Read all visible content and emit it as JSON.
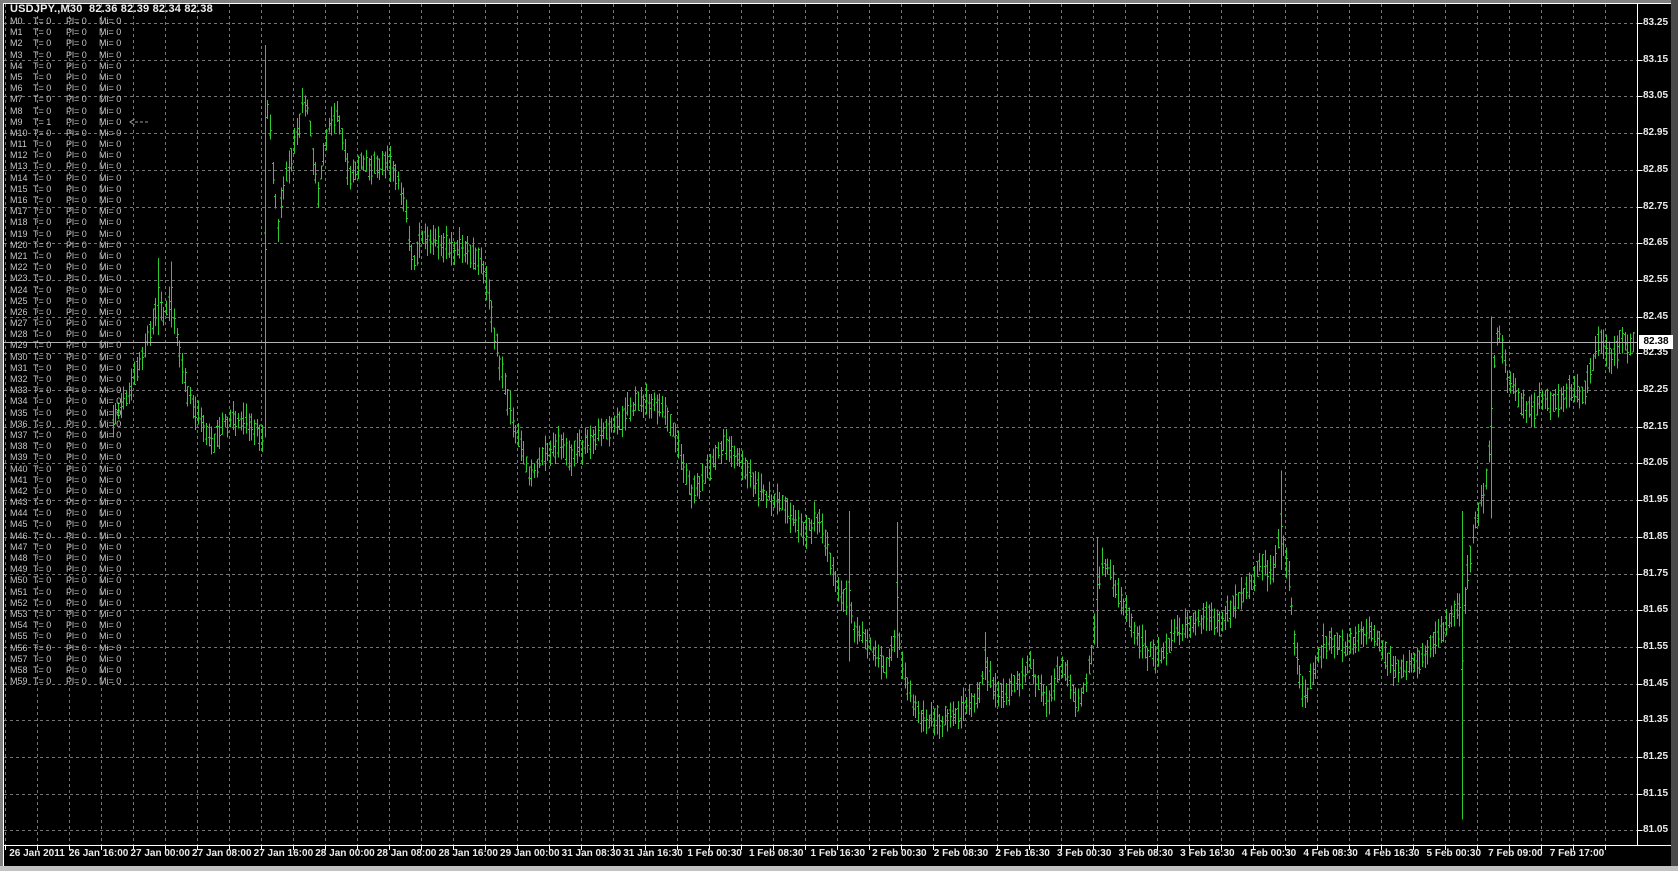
{
  "header": {
    "title": "USDJPY.,M30  82.36 82.39 82.34 82.38"
  },
  "indicator": {
    "arrow_row_index": 9,
    "rows": [
      [
        "M0",
        "T= 0",
        "Pl= 0",
        "Mi= 0"
      ],
      [
        "M1",
        "T= 0",
        "Pl= 0",
        "Mi= 0"
      ],
      [
        "M2",
        "T= 0",
        "Pl= 0",
        "Mi= 0"
      ],
      [
        "M3",
        "T= 0",
        "Pl= 0",
        "Mi= 0"
      ],
      [
        "M4",
        "T= 0",
        "Pl= 0",
        "Mi= 0"
      ],
      [
        "M5",
        "T= 0",
        "Pl= 0",
        "Mi= 0"
      ],
      [
        "M6",
        "T= 0",
        "Pl= 0",
        "Mi= 0"
      ],
      [
        "M7",
        "T= 0",
        "Pl= 0",
        "Mi= 0"
      ],
      [
        "M8",
        "T= 0",
        "Pl= 0",
        "Mi= 0"
      ],
      [
        "M9",
        "T= 1",
        "Pl= 0",
        "Mi= 0"
      ],
      [
        "M10",
        "T= 0",
        "Pl= 0",
        "Mi= 0"
      ],
      [
        "M11",
        "T= 0",
        "Pl= 0",
        "Mi= 0"
      ],
      [
        "M12",
        "T= 0",
        "Pl= 0",
        "Mi= 0"
      ],
      [
        "M13",
        "T= 0",
        "Pl= 0",
        "Mi= 0"
      ],
      [
        "M14",
        "T= 0",
        "Pl= 0",
        "Mi= 0"
      ],
      [
        "M15",
        "T= 0",
        "Pl= 0",
        "Mi= 0"
      ],
      [
        "M16",
        "T= 0",
        "Pl= 0",
        "Mi= 0"
      ],
      [
        "M17",
        "T= 0",
        "Pl= 0",
        "Mi= 0"
      ],
      [
        "M18",
        "T= 0",
        "Pl= 0",
        "Mi= 0"
      ],
      [
        "M19",
        "T= 0",
        "Pl= 0",
        "Mi= 0"
      ],
      [
        "M20",
        "T= 0",
        "Pl= 0",
        "Mi= 0"
      ],
      [
        "M21",
        "T= 0",
        "Pl= 0",
        "Mi= 0"
      ],
      [
        "M22",
        "T= 0",
        "Pl= 0",
        "Mi= 0"
      ],
      [
        "M23",
        "T= 0",
        "Pl= 0",
        "Mi= 0"
      ],
      [
        "M24",
        "T= 0",
        "Pl= 0",
        "Mi= 0"
      ],
      [
        "M25",
        "T= 0",
        "Pl= 0",
        "Mi= 0"
      ],
      [
        "M26",
        "T= 0",
        "Pl= 0",
        "Mi= 0"
      ],
      [
        "M27",
        "T= 0",
        "Pl= 0",
        "Mi= 0"
      ],
      [
        "M28",
        "T= 0",
        "Pl= 0",
        "Mi= 0"
      ],
      [
        "M29",
        "T= 0",
        "Pl= 0",
        "Mi= 0"
      ],
      [
        "M30",
        "T= 0",
        "Pl= 0",
        "Mi= 0"
      ],
      [
        "M31",
        "T= 0",
        "Pl= 0",
        "Mi= 0"
      ],
      [
        "M32",
        "T= 0",
        "Pl= 0",
        "Mi= 0"
      ],
      [
        "M33",
        "T= 0",
        "Pl= 0",
        "Mi= 0"
      ],
      [
        "M34",
        "T= 0",
        "Pl= 0",
        "Mi= 0"
      ],
      [
        "M35",
        "T= 0",
        "Pl= 0",
        "Mi= 0"
      ],
      [
        "M36",
        "T= 0",
        "Pl= 0",
        "Mi= 0"
      ],
      [
        "M37",
        "T= 0",
        "Pl= 0",
        "Mi= 0"
      ],
      [
        "M38",
        "T= 0",
        "Pl= 0",
        "Mi= 0"
      ],
      [
        "M39",
        "T= 0",
        "Pl= 0",
        "Mi= 0"
      ],
      [
        "M40",
        "T= 0",
        "Pl= 0",
        "Mi= 0"
      ],
      [
        "M41",
        "T= 0",
        "Pl= 0",
        "Mi= 0"
      ],
      [
        "M42",
        "T= 0",
        "Pl= 0",
        "Mi= 0"
      ],
      [
        "M43",
        "T= 0",
        "Pl= 0",
        "Mi= 0"
      ],
      [
        "M44",
        "T= 0",
        "Pl= 0",
        "Mi= 0"
      ],
      [
        "M45",
        "T= 0",
        "Pl= 0",
        "Mi= 0"
      ],
      [
        "M46",
        "T= 0",
        "Pl= 0",
        "Mi= 0"
      ],
      [
        "M47",
        "T= 0",
        "Pl= 0",
        "Mi= 0"
      ],
      [
        "M48",
        "T= 0",
        "Pl= 0",
        "Mi= 0"
      ],
      [
        "M49",
        "T= 0",
        "Pl= 0",
        "Mi= 0"
      ],
      [
        "M50",
        "T= 0",
        "Pl= 0",
        "Mi= 0"
      ],
      [
        "M51",
        "T= 0",
        "Pl= 0",
        "Mi= 0"
      ],
      [
        "M52",
        "T= 0",
        "Pl= 0",
        "Mi= 0"
      ],
      [
        "M53",
        "T= 0",
        "Pl= 0",
        "Mi= 0"
      ],
      [
        "M54",
        "T= 0",
        "Pl= 0",
        "Mi= 0"
      ],
      [
        "M55",
        "T= 0",
        "Pl= 0",
        "Mi= 0"
      ],
      [
        "M56",
        "T= 0",
        "Pl= 0",
        "Mi= 0"
      ],
      [
        "M57",
        "T= 0",
        "Pl= 0",
        "Mi= 0"
      ],
      [
        "M58",
        "T= 0",
        "Pl= 0",
        "Mi= 0"
      ],
      [
        "M59",
        "T= 0",
        "Pl= 0",
        "Mi= 0"
      ]
    ]
  },
  "chart_data": {
    "type": "ohlc-bar-chart",
    "symbol": "USDJPY.",
    "timeframe": "M30",
    "current_bar": {
      "open": "82.36",
      "high": "82.39",
      "low": "82.34",
      "close": "82.38"
    },
    "bid": 82.38,
    "bar_color": "#2ECB2E",
    "grid_color": "#757575",
    "bid_line_color": "#b2b2b2",
    "background": "#000000",
    "price_axis": {
      "current": "82.38",
      "top": 83.25,
      "step": 0.1,
      "labels": [
        "83.25",
        "83.15",
        "83.05",
        "82.95",
        "82.85",
        "82.75",
        "82.65",
        "82.55",
        "82.45",
        "82.35",
        "82.25",
        "82.15",
        "82.05",
        "81.95",
        "81.85",
        "81.75",
        "81.65",
        "81.55",
        "81.45",
        "81.35",
        "81.25",
        "81.15",
        "81.05"
      ]
    },
    "time_axis": {
      "labels": [
        "26 Jan 2011",
        "26 Jan 16:00",
        "27 Jan 00:00",
        "27 Jan 08:00",
        "27 Jan 16:00",
        "28 Jan 00:00",
        "28 Jan 08:00",
        "28 Jan 16:00",
        "29 Jan 00:00",
        "31 Jan 08:30",
        "31 Jan 16:30",
        "1 Feb 00:30",
        "1 Feb 08:30",
        "1 Feb 16:30",
        "2 Feb 00:30",
        "2 Feb 08:30",
        "2 Feb 16:30",
        "3 Feb 00:30",
        "3 Feb 08:30",
        "3 Feb 16:30",
        "4 Feb 00:30",
        "4 Feb 08:30",
        "4 Feb 16:30",
        "5 Feb 00:30",
        "7 Feb 09:00",
        "7 Feb 17:00"
      ]
    },
    "path_keypoints": [
      [
        112,
        82.15
      ],
      [
        120,
        82.2
      ],
      [
        128,
        82.24
      ],
      [
        136,
        82.3
      ],
      [
        144,
        82.36
      ],
      [
        152,
        82.43
      ],
      [
        157.8,
        82.5
      ],
      [
        163,
        82.46
      ],
      [
        168,
        82.48
      ],
      [
        171.2,
        82.5
      ],
      [
        176,
        82.4
      ],
      [
        182,
        82.31
      ],
      [
        188,
        82.24
      ],
      [
        194,
        82.2
      ],
      [
        200,
        82.17
      ],
      [
        206,
        82.13
      ],
      [
        212,
        82.1
      ],
      [
        218,
        82.13
      ],
      [
        224,
        82.16
      ],
      [
        231,
        82.17
      ],
      [
        238,
        82.16
      ],
      [
        245,
        82.16
      ],
      [
        252,
        82.15
      ],
      [
        258,
        82.14
      ],
      [
        262,
        82.13
      ],
      [
        264.5,
        82.6
      ],
      [
        267,
        83.02
      ],
      [
        270,
        82.94
      ],
      [
        274,
        82.8
      ],
      [
        277,
        82.68
      ],
      [
        280,
        82.76
      ],
      [
        284,
        82.82
      ],
      [
        288,
        82.86
      ],
      [
        292,
        82.89
      ],
      [
        297,
        82.96
      ],
      [
        302,
        83.03
      ],
      [
        307,
        83.02
      ],
      [
        311,
        82.92
      ],
      [
        315,
        82.84
      ],
      [
        318,
        82.78
      ],
      [
        322,
        82.88
      ],
      [
        327,
        82.95
      ],
      [
        332,
        82.99
      ],
      [
        337,
        83.0
      ],
      [
        342,
        82.94
      ],
      [
        347,
        82.86
      ],
      [
        352,
        82.83
      ],
      [
        358,
        82.86
      ],
      [
        364,
        82.87
      ],
      [
        370,
        82.85
      ],
      [
        376,
        82.86
      ],
      [
        382,
        82.88
      ],
      [
        388,
        82.87
      ],
      [
        394,
        82.85
      ],
      [
        400,
        82.8
      ],
      [
        406,
        82.72
      ],
      [
        410,
        82.63
      ],
      [
        414,
        82.6
      ],
      [
        419,
        82.65
      ],
      [
        425,
        82.67
      ],
      [
        432,
        82.66
      ],
      [
        440,
        82.65
      ],
      [
        448,
        82.64
      ],
      [
        456,
        82.64
      ],
      [
        464,
        82.63
      ],
      [
        472,
        82.61
      ],
      [
        480,
        82.6
      ],
      [
        486,
        82.54
      ],
      [
        491,
        82.45
      ],
      [
        497,
        82.36
      ],
      [
        503,
        82.28
      ],
      [
        509,
        82.2
      ],
      [
        516,
        82.12
      ],
      [
        523,
        82.07
      ],
      [
        530,
        82.01
      ],
      [
        536,
        82.04
      ],
      [
        543,
        82.07
      ],
      [
        550,
        82.08
      ],
      [
        557,
        82.1
      ],
      [
        564,
        82.09
      ],
      [
        570,
        82.07
      ],
      [
        577,
        82.09
      ],
      [
        584,
        82.1
      ],
      [
        591,
        82.12
      ],
      [
        598,
        82.12
      ],
      [
        605,
        82.13
      ],
      [
        612,
        82.15
      ],
      [
        619,
        82.17
      ],
      [
        627,
        82.19
      ],
      [
        635,
        82.21
      ],
      [
        643,
        82.22
      ],
      [
        651,
        82.22
      ],
      [
        658,
        82.21
      ],
      [
        665,
        82.19
      ],
      [
        671,
        82.15
      ],
      [
        678,
        82.09
      ],
      [
        684,
        82.03
      ],
      [
        690,
        81.98
      ],
      [
        696,
        81.99
      ],
      [
        702,
        82.01
      ],
      [
        708,
        82.03
      ],
      [
        714,
        82.06
      ],
      [
        720,
        82.09
      ],
      [
        726,
        82.1
      ],
      [
        732,
        82.08
      ],
      [
        738,
        82.06
      ],
      [
        744,
        82.04
      ],
      [
        750,
        82.02
      ],
      [
        757,
        81.99
      ],
      [
        764,
        81.97
      ],
      [
        771,
        81.95
      ],
      [
        778,
        81.95
      ],
      [
        785,
        81.93
      ],
      [
        792,
        81.9
      ],
      [
        799,
        81.88
      ],
      [
        806,
        81.87
      ],
      [
        813,
        81.89
      ],
      [
        819,
        81.9
      ],
      [
        825,
        81.85
      ],
      [
        831,
        81.78
      ],
      [
        837,
        81.72
      ],
      [
        843,
        81.68
      ],
      [
        848.5,
        81.67
      ],
      [
        854,
        81.61
      ],
      [
        860,
        81.58
      ],
      [
        866,
        81.56
      ],
      [
        872,
        81.54
      ],
      [
        878,
        81.52
      ],
      [
        884,
        81.5
      ],
      [
        890,
        81.53
      ],
      [
        896.5,
        81.62
      ],
      [
        901,
        81.52
      ],
      [
        906,
        81.45
      ],
      [
        911,
        81.41
      ],
      [
        916,
        81.38
      ],
      [
        921,
        81.36
      ],
      [
        927,
        81.35
      ],
      [
        933,
        81.36
      ],
      [
        939,
        81.35
      ],
      [
        945,
        81.36
      ],
      [
        951,
        81.36
      ],
      [
        957,
        81.37
      ],
      [
        963,
        81.39
      ],
      [
        969,
        81.4
      ],
      [
        975,
        81.41
      ],
      [
        980,
        81.44
      ],
      [
        984.5,
        81.5
      ],
      [
        989,
        81.46
      ],
      [
        994,
        81.44
      ],
      [
        1000,
        81.43
      ],
      [
        1006,
        81.42
      ],
      [
        1012,
        81.44
      ],
      [
        1018,
        81.46
      ],
      [
        1024,
        81.48
      ],
      [
        1030,
        81.5
      ],
      [
        1036,
        81.46
      ],
      [
        1042,
        81.42
      ],
      [
        1047,
        81.39
      ],
      [
        1052,
        81.43
      ],
      [
        1057,
        81.48
      ],
      [
        1062,
        81.5
      ],
      [
        1067,
        81.47
      ],
      [
        1072,
        81.43
      ],
      [
        1077,
        81.39
      ],
      [
        1082,
        81.42
      ],
      [
        1087,
        81.46
      ],
      [
        1092,
        81.55
      ],
      [
        1096.5,
        81.68
      ],
      [
        1101,
        81.76
      ],
      [
        1106,
        81.77
      ],
      [
        1111,
        81.74
      ],
      [
        1117,
        81.7
      ],
      [
        1123,
        81.66
      ],
      [
        1129,
        81.62
      ],
      [
        1135,
        81.59
      ],
      [
        1141,
        81.56
      ],
      [
        1147,
        81.54
      ],
      [
        1153,
        81.53
      ],
      [
        1159,
        81.52
      ],
      [
        1165,
        81.54
      ],
      [
        1171,
        81.57
      ],
      [
        1177,
        81.59
      ],
      [
        1183,
        81.6
      ],
      [
        1189,
        81.61
      ],
      [
        1195,
        81.62
      ],
      [
        1201,
        81.63
      ],
      [
        1207,
        81.64
      ],
      [
        1213,
        81.63
      ],
      [
        1219,
        81.6
      ],
      [
        1225,
        81.63
      ],
      [
        1231,
        81.66
      ],
      [
        1237,
        81.68
      ],
      [
        1243,
        81.7
      ],
      [
        1249,
        81.72
      ],
      [
        1255,
        81.75
      ],
      [
        1261,
        81.78
      ],
      [
        1267,
        81.75
      ],
      [
        1272,
        81.76
      ],
      [
        1276,
        81.79
      ],
      [
        1280.5,
        81.88
      ],
      [
        1285,
        81.8
      ],
      [
        1289,
        81.72
      ],
      [
        1293,
        81.6
      ],
      [
        1297,
        81.5
      ],
      [
        1301,
        81.44
      ],
      [
        1306,
        81.42
      ],
      [
        1311,
        81.46
      ],
      [
        1316,
        81.51
      ],
      [
        1321,
        81.55
      ],
      [
        1326,
        81.57
      ],
      [
        1332,
        81.57
      ],
      [
        1338,
        81.56
      ],
      [
        1344,
        81.55
      ],
      [
        1350,
        81.56
      ],
      [
        1356,
        81.57
      ],
      [
        1362,
        81.59
      ],
      [
        1368,
        81.59
      ],
      [
        1374,
        81.58
      ],
      [
        1380,
        81.56
      ],
      [
        1386,
        81.53
      ],
      [
        1392,
        81.5
      ],
      [
        1398,
        81.49
      ],
      [
        1404,
        81.49
      ],
      [
        1410,
        81.5
      ],
      [
        1416,
        81.51
      ],
      [
        1422,
        81.53
      ],
      [
        1428,
        81.55
      ],
      [
        1434,
        81.57
      ],
      [
        1440,
        81.59
      ],
      [
        1446,
        81.61
      ],
      [
        1452,
        81.63
      ],
      [
        1457,
        81.66
      ],
      [
        1461.8,
        81.65
      ],
      [
        1465,
        81.7
      ],
      [
        1469,
        81.78
      ],
      [
        1473,
        81.85
      ],
      [
        1477,
        81.91
      ],
      [
        1481,
        81.95
      ],
      [
        1485,
        81.98
      ],
      [
        1491.2,
        82.18
      ],
      [
        1495,
        82.38
      ],
      [
        1499,
        82.4
      ],
      [
        1503,
        82.34
      ],
      [
        1507,
        82.29
      ],
      [
        1512,
        82.26
      ],
      [
        1517,
        82.23
      ],
      [
        1522,
        82.21
      ],
      [
        1527,
        82.2
      ],
      [
        1532,
        82.19
      ],
      [
        1537,
        82.21
      ],
      [
        1542,
        82.23
      ],
      [
        1547,
        82.23
      ],
      [
        1552,
        82.21
      ],
      [
        1557,
        82.22
      ],
      [
        1562,
        82.23
      ],
      [
        1567,
        82.24
      ],
      [
        1572,
        82.25
      ],
      [
        1577,
        82.24
      ],
      [
        1582,
        82.23
      ],
      [
        1587,
        82.27
      ],
      [
        1592,
        82.32
      ],
      [
        1597,
        82.37
      ],
      [
        1601,
        82.39
      ],
      [
        1605,
        82.36
      ],
      [
        1609,
        82.33
      ],
      [
        1613,
        82.34
      ],
      [
        1617,
        82.37
      ],
      [
        1621,
        82.4
      ],
      [
        1625,
        82.38
      ],
      [
        1629,
        82.36
      ],
      [
        1633,
        82.38
      ]
    ],
    "special_bars": [
      [
        157.8,
        82.61,
        82.4
      ],
      [
        171.2,
        82.6,
        82.42
      ],
      [
        264.5,
        83.19,
        82.12
      ],
      [
        848.5,
        81.92,
        81.51
      ],
      [
        896.5,
        81.89,
        81.52
      ],
      [
        984.5,
        81.59,
        81.46
      ],
      [
        1096.5,
        81.85,
        81.55
      ],
      [
        1280.5,
        82.03,
        81.76
      ],
      [
        1461.8,
        81.92,
        81.08
      ],
      [
        1491.2,
        82.45,
        81.9
      ]
    ]
  }
}
